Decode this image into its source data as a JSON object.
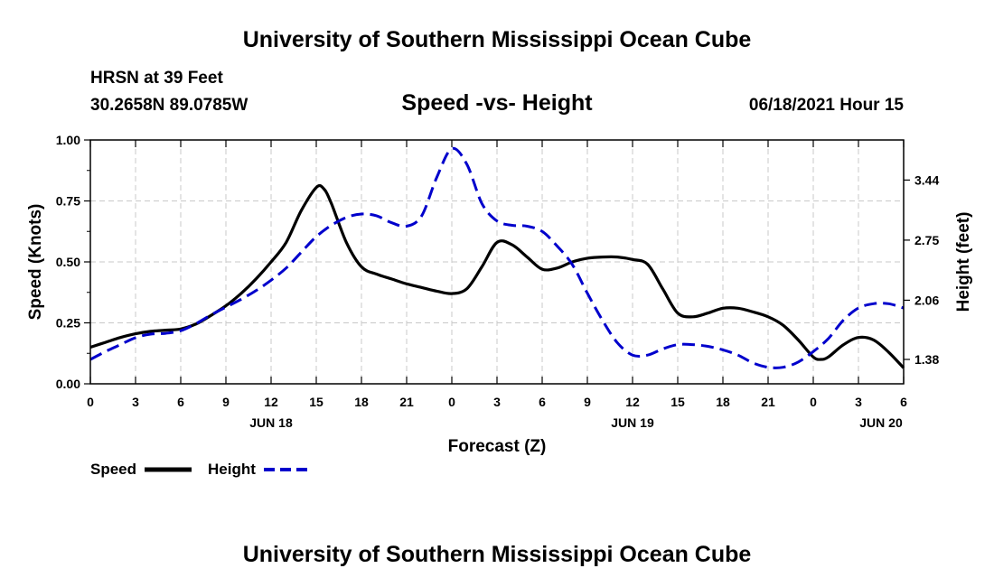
{
  "header": {
    "title": "University of Southern Mississippi Ocean Cube",
    "station": "HRSN at 39 Feet",
    "coordinates": "30.2658N  89.0785W",
    "subtitle": "Speed -vs- Height",
    "datetime": "06/18/2021 Hour 15"
  },
  "footer": {
    "title": "University of Southern Mississippi Ocean Cube"
  },
  "chart_data": {
    "type": "line",
    "title": "Speed -vs- Height",
    "xlabel": "Forecast (Z)",
    "ylabel": "Speed (Knots)",
    "y2label": "Height (feet)",
    "x_range": [
      0,
      54
    ],
    "ylim": [
      0,
      1
    ],
    "y2lim": [
      1.1,
      3.9
    ],
    "x_ticks": [
      0,
      3,
      6,
      9,
      12,
      15,
      18,
      21,
      24,
      27,
      30,
      33,
      36,
      39,
      42,
      45,
      48,
      51,
      54
    ],
    "x_tick_labels": [
      "0",
      "3",
      "6",
      "9",
      "12",
      "15",
      "18",
      "21",
      "0",
      "3",
      "6",
      "9",
      "12",
      "15",
      "18",
      "21",
      "0",
      "3",
      "6"
    ],
    "date_labels": [
      {
        "x": 12,
        "label": "JUN 18"
      },
      {
        "x": 36,
        "label": "JUN 19"
      },
      {
        "x": 52.5,
        "label": "JUN 20"
      }
    ],
    "y_ticks": [
      0,
      0.25,
      0.5,
      0.75,
      1.0
    ],
    "y_tick_labels": [
      "0.00",
      "0.25",
      "0.50",
      "0.75",
      "1.00"
    ],
    "y2_ticks": [
      1.38,
      2.06,
      2.75,
      3.44
    ],
    "y2_tick_labels": [
      "1.38",
      "2.06",
      "2.75",
      "3.44"
    ],
    "grid": true,
    "legend": [
      "Speed",
      "Height"
    ],
    "series": [
      {
        "name": "Speed",
        "axis": "left",
        "color": "#000000",
        "dash": "solid",
        "points": [
          [
            0,
            0.15
          ],
          [
            1,
            0.17
          ],
          [
            2,
            0.19
          ],
          [
            3,
            0.205
          ],
          [
            4,
            0.215
          ],
          [
            5,
            0.22
          ],
          [
            6,
            0.225
          ],
          [
            7,
            0.245
          ],
          [
            8,
            0.28
          ],
          [
            9,
            0.32
          ],
          [
            10,
            0.37
          ],
          [
            11,
            0.43
          ],
          [
            12,
            0.5
          ],
          [
            13,
            0.58
          ],
          [
            14,
            0.71
          ],
          [
            15,
            0.805
          ],
          [
            15.5,
            0.8
          ],
          [
            16,
            0.74
          ],
          [
            17,
            0.58
          ],
          [
            18,
            0.48
          ],
          [
            19,
            0.45
          ],
          [
            20,
            0.43
          ],
          [
            21,
            0.41
          ],
          [
            22,
            0.395
          ],
          [
            23,
            0.38
          ],
          [
            24,
            0.37
          ],
          [
            25,
            0.39
          ],
          [
            26,
            0.48
          ],
          [
            27,
            0.58
          ],
          [
            28,
            0.57
          ],
          [
            29,
            0.52
          ],
          [
            30,
            0.47
          ],
          [
            31,
            0.475
          ],
          [
            32,
            0.5
          ],
          [
            33,
            0.515
          ],
          [
            34,
            0.52
          ],
          [
            35,
            0.52
          ],
          [
            36,
            0.51
          ],
          [
            37,
            0.49
          ],
          [
            38,
            0.39
          ],
          [
            39,
            0.29
          ],
          [
            40,
            0.275
          ],
          [
            41,
            0.29
          ],
          [
            42,
            0.31
          ],
          [
            43,
            0.31
          ],
          [
            44,
            0.295
          ],
          [
            45,
            0.275
          ],
          [
            46,
            0.24
          ],
          [
            47,
            0.18
          ],
          [
            48,
            0.11
          ],
          [
            48.5,
            0.1
          ],
          [
            49,
            0.11
          ],
          [
            50,
            0.16
          ],
          [
            51,
            0.19
          ],
          [
            52,
            0.18
          ],
          [
            53,
            0.13
          ],
          [
            54,
            0.065
          ]
        ]
      },
      {
        "name": "Height",
        "axis": "right",
        "color": "#0000cc",
        "dash": "dashed",
        "points": [
          [
            0,
            1.38
          ],
          [
            1,
            1.47
          ],
          [
            2,
            1.55
          ],
          [
            3,
            1.63
          ],
          [
            4,
            1.67
          ],
          [
            5,
            1.68
          ],
          [
            6,
            1.71
          ],
          [
            7,
            1.79
          ],
          [
            8,
            1.89
          ],
          [
            9,
            1.98
          ],
          [
            10,
            2.07
          ],
          [
            11,
            2.17
          ],
          [
            12,
            2.29
          ],
          [
            13,
            2.43
          ],
          [
            14,
            2.61
          ],
          [
            15,
            2.79
          ],
          [
            16,
            2.92
          ],
          [
            17,
            3.01
          ],
          [
            18,
            3.05
          ],
          [
            19,
            3.03
          ],
          [
            20,
            2.95
          ],
          [
            21,
            2.91
          ],
          [
            22,
            3.03
          ],
          [
            23,
            3.47
          ],
          [
            24,
            3.8
          ],
          [
            25,
            3.62
          ],
          [
            26,
            3.17
          ],
          [
            27,
            2.97
          ],
          [
            28,
            2.92
          ],
          [
            29,
            2.91
          ],
          [
            30,
            2.85
          ],
          [
            31,
            2.68
          ],
          [
            32,
            2.47
          ],
          [
            33,
            2.14
          ],
          [
            34,
            1.83
          ],
          [
            35,
            1.57
          ],
          [
            36,
            1.43
          ],
          [
            37,
            1.43
          ],
          [
            38,
            1.5
          ],
          [
            39,
            1.55
          ],
          [
            40,
            1.55
          ],
          [
            41,
            1.53
          ],
          [
            42,
            1.49
          ],
          [
            43,
            1.43
          ],
          [
            44,
            1.34
          ],
          [
            45,
            1.29
          ],
          [
            46,
            1.29
          ],
          [
            47,
            1.35
          ],
          [
            48,
            1.47
          ],
          [
            49,
            1.62
          ],
          [
            50,
            1.83
          ],
          [
            51,
            1.97
          ],
          [
            52,
            2.02
          ],
          [
            53,
            2.02
          ],
          [
            54,
            1.97
          ]
        ]
      }
    ]
  }
}
